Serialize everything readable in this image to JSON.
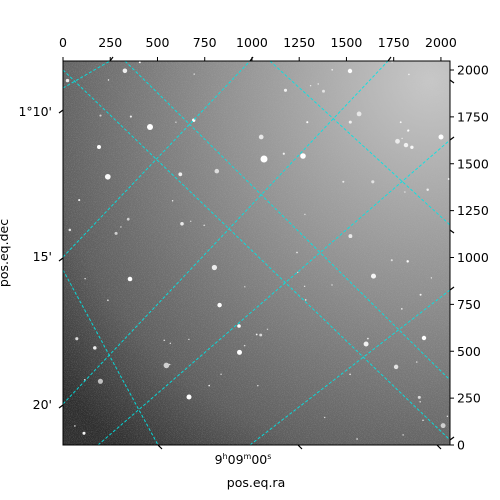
{
  "chart_data": {
    "type": "image",
    "image": {
      "shape": [
        2048,
        2048
      ],
      "colormap": "gray",
      "background": "noisy gray sky, brighter toward top-right, darker toward bottom-left",
      "notable_features": [
        "scattered point-like stars",
        "bright star near center"
      ]
    },
    "pixel_axes": {
      "x": {
        "range": [
          0,
          2048
        ],
        "ticks": [
          0,
          250,
          500,
          750,
          1000,
          1250,
          1500,
          1750,
          2000
        ],
        "position": "top"
      },
      "y": {
        "range": [
          0,
          2048
        ],
        "ticks": [
          0,
          250,
          500,
          750,
          1000,
          1250,
          1500,
          1750,
          2000
        ],
        "position": "right"
      }
    },
    "world_axes": {
      "ra": {
        "label": "pos.eq.ra",
        "position": "bottom",
        "tick_labels": [
          {
            "h": "9",
            "m": "09",
            "s": "00"
          }
        ]
      },
      "dec": {
        "label": "pos.eq.dec",
        "position": "left",
        "tick_labels": [
          "1°10'",
          "15'",
          "20'"
        ]
      }
    },
    "grid": {
      "visible": true,
      "color": "#00e5e5",
      "style": "dashed",
      "coordinate": "world"
    }
  }
}
